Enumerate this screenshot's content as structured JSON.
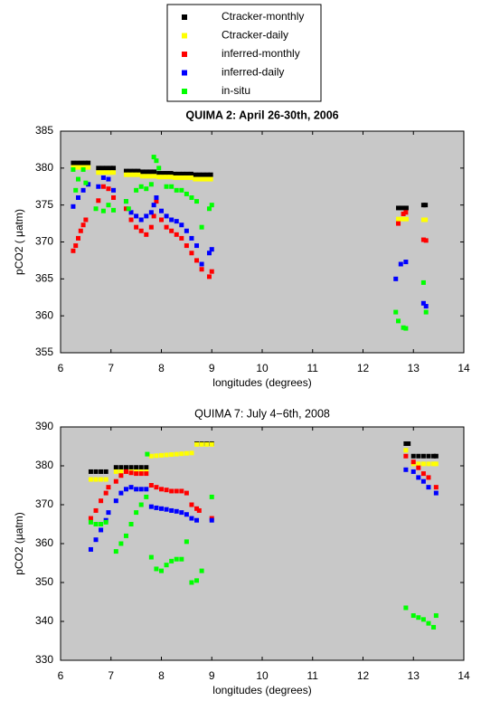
{
  "chart_data": [
    {
      "type": "scatter",
      "title": "QUIMA 2: April 26-30th, 2006",
      "x_label": "longitudes (degrees)",
      "y_label": "pCO2 ( μatm)",
      "xlim": [
        6,
        14
      ],
      "xticks": [
        6,
        7,
        8,
        9,
        10,
        11,
        12,
        13,
        14
      ],
      "ylim": [
        355,
        385
      ],
      "yticks": [
        355,
        360,
        365,
        370,
        375,
        380,
        385
      ],
      "series": [
        {
          "name": "Ctracker-monthly",
          "color": "#000000",
          "x": [
            6.25,
            6.33,
            6.41,
            6.49,
            6.55,
            6.75,
            6.83,
            6.91,
            6.99,
            7.05,
            7.3,
            7.38,
            7.46,
            7.54,
            7.62,
            7.7,
            7.78,
            7.86,
            7.95,
            8.03,
            8.11,
            8.19,
            8.27,
            8.35,
            8.43,
            8.51,
            8.59,
            8.67,
            8.75,
            8.83,
            8.91,
            8.98,
            12.7,
            12.78,
            12.86,
            13.2,
            13.24
          ],
          "values": [
            380.7,
            380.7,
            380.7,
            380.7,
            380.7,
            380.0,
            380.0,
            380.0,
            380.0,
            380.0,
            379.6,
            379.6,
            379.6,
            379.6,
            379.5,
            379.5,
            379.5,
            379.5,
            379.3,
            379.3,
            379.3,
            379.3,
            379.2,
            379.2,
            379.2,
            379.2,
            379.2,
            379.1,
            379.1,
            379.1,
            379.1,
            379.1,
            374.6,
            374.6,
            374.6,
            375.0,
            375.0
          ]
        },
        {
          "name": "Ctracker-daily",
          "color": "#ffff00",
          "x": [
            6.25,
            6.33,
            6.41,
            6.49,
            6.55,
            6.75,
            6.83,
            6.91,
            6.99,
            7.05,
            7.3,
            7.38,
            7.46,
            7.54,
            7.62,
            7.7,
            7.78,
            7.86,
            7.95,
            8.03,
            8.11,
            8.19,
            8.27,
            8.35,
            8.43,
            8.51,
            8.59,
            8.67,
            8.75,
            8.83,
            8.91,
            8.98,
            12.7,
            12.78,
            12.86,
            13.2,
            13.24
          ],
          "values": [
            380.1,
            380.1,
            380.1,
            380.1,
            380.1,
            379.4,
            379.4,
            379.4,
            379.4,
            379.4,
            379.1,
            379.1,
            379.1,
            379.1,
            378.9,
            378.9,
            378.9,
            378.9,
            378.8,
            378.8,
            378.8,
            378.8,
            378.7,
            378.7,
            378.7,
            378.7,
            378.7,
            378.5,
            378.5,
            378.5,
            378.5,
            378.5,
            373.1,
            373.1,
            373.1,
            373.0,
            373.0
          ]
        },
        {
          "name": "inferred-monthly",
          "color": "#ff0000",
          "x": [
            6.25,
            6.3,
            6.35,
            6.4,
            6.45,
            6.5,
            6.75,
            6.85,
            6.95,
            7.05,
            7.3,
            7.4,
            7.5,
            7.6,
            7.7,
            7.8,
            7.85,
            7.9,
            8.0,
            8.1,
            8.2,
            8.3,
            8.4,
            8.5,
            8.6,
            8.7,
            8.8,
            8.95,
            9.0,
            12.7,
            12.8,
            12.85,
            13.2,
            13.25
          ],
          "values": [
            368.8,
            369.5,
            370.5,
            371.5,
            372.3,
            373.0,
            375.6,
            377.5,
            377.2,
            376.0,
            374.5,
            373.0,
            372.0,
            371.5,
            371.0,
            372.0,
            373.5,
            375.5,
            373.0,
            372.0,
            371.5,
            371.0,
            370.5,
            369.5,
            368.5,
            367.5,
            366.3,
            365.3,
            366.0,
            372.5,
            373.8,
            374.0,
            370.3,
            370.2
          ]
        },
        {
          "name": "inferred-daily",
          "color": "#0000ff",
          "x": [
            6.25,
            6.35,
            6.45,
            6.55,
            6.75,
            6.85,
            6.95,
            7.05,
            7.3,
            7.4,
            7.5,
            7.6,
            7.7,
            7.8,
            7.85,
            7.9,
            8.0,
            8.1,
            8.2,
            8.3,
            8.4,
            8.5,
            8.6,
            8.7,
            8.8,
            8.95,
            9.0,
            12.65,
            12.75,
            12.85,
            13.2,
            13.25
          ],
          "values": [
            374.8,
            376.0,
            377.0,
            377.8,
            377.5,
            378.7,
            378.5,
            377.0,
            375.5,
            374.0,
            373.5,
            373.0,
            373.5,
            374.0,
            375.0,
            376.0,
            374.2,
            373.5,
            373.0,
            372.8,
            372.3,
            371.5,
            370.5,
            369.5,
            367.0,
            368.5,
            369.0,
            365.0,
            367.0,
            367.3,
            361.7,
            361.3
          ]
        },
        {
          "name": "in-situ",
          "color": "#00ff00",
          "x": [
            6.25,
            6.3,
            6.35,
            6.45,
            6.5,
            6.7,
            6.85,
            6.95,
            7.05,
            7.3,
            7.35,
            7.5,
            7.6,
            7.7,
            7.8,
            7.85,
            7.9,
            7.95,
            8.1,
            8.2,
            8.3,
            8.4,
            8.5,
            8.6,
            8.7,
            8.8,
            8.95,
            9.0,
            12.65,
            12.7,
            12.8,
            12.85,
            13.2,
            13.25
          ],
          "values": [
            379.8,
            377.0,
            378.5,
            379.8,
            378.0,
            374.5,
            374.2,
            375.0,
            374.3,
            375.5,
            374.5,
            377.0,
            377.5,
            377.2,
            377.8,
            381.5,
            381.0,
            380.0,
            377.5,
            377.5,
            377.0,
            377.0,
            376.5,
            376.0,
            375.5,
            372.0,
            374.5,
            375.0,
            360.5,
            359.3,
            358.4,
            358.3,
            364.5,
            360.5
          ]
        }
      ]
    },
    {
      "type": "scatter",
      "title": "QUIMA 7: July 4−6th, 2008",
      "x_label": "longitudes (degrees)",
      "y_label": "pCO2 (μatm)",
      "xlim": [
        6,
        14
      ],
      "xticks": [
        6,
        7,
        8,
        9,
        10,
        11,
        12,
        13,
        14
      ],
      "ylim": [
        330,
        390
      ],
      "yticks": [
        330,
        340,
        350,
        360,
        370,
        380,
        390
      ],
      "series": [
        {
          "x": [
            6.6,
            6.7,
            6.8,
            6.9,
            7.1,
            7.2,
            7.3,
            7.4,
            7.5,
            7.6,
            7.7,
            8.7,
            8.8,
            8.9,
            9.0,
            12.85,
            12.9,
            13.0,
            13.1,
            13.2,
            13.3,
            13.4,
            13.45
          ],
          "values": [
            378.5,
            378.5,
            378.5,
            378.5,
            379.6,
            379.6,
            379.6,
            379.6,
            379.6,
            379.6,
            379.6,
            385.7,
            385.7,
            385.7,
            385.7,
            385.7,
            385.7,
            382.5,
            382.5,
            382.5,
            382.5,
            382.5,
            382.5
          ]
        },
        {
          "x": [
            6.6,
            6.7,
            6.8,
            6.9,
            7.1,
            7.2,
            7.3,
            7.4,
            7.5,
            7.6,
            7.7,
            7.8,
            7.9,
            8.0,
            8.1,
            8.2,
            8.3,
            8.4,
            8.5,
            8.6,
            8.7,
            8.8,
            8.9,
            9.0,
            12.85,
            13.0,
            13.1,
            13.2,
            13.3,
            13.4,
            13.45
          ],
          "values": [
            376.5,
            376.5,
            376.5,
            376.5,
            378.5,
            378.5,
            378.5,
            378.5,
            378.5,
            378.5,
            378.5,
            382.5,
            382.6,
            382.7,
            382.8,
            382.9,
            383.0,
            383.1,
            383.2,
            383.3,
            385.5,
            385.5,
            385.5,
            385.5,
            384.0,
            380.5,
            380.5,
            380.5,
            380.5,
            380.5,
            380.5
          ]
        },
        {
          "x": [
            6.6,
            6.7,
            6.8,
            6.9,
            6.95,
            7.1,
            7.2,
            7.3,
            7.4,
            7.5,
            7.6,
            7.7,
            7.8,
            7.9,
            8.0,
            8.1,
            8.2,
            8.3,
            8.4,
            8.5,
            8.6,
            8.7,
            8.75,
            9.0,
            12.85,
            13.0,
            13.1,
            13.2,
            13.3,
            13.45
          ],
          "values": [
            366.5,
            368.5,
            371.0,
            373.0,
            374.5,
            376.0,
            377.5,
            378.5,
            378.2,
            378.0,
            378.0,
            378.0,
            375.0,
            374.5,
            374.0,
            373.8,
            373.5,
            373.5,
            373.5,
            373.0,
            370.0,
            369.0,
            368.5,
            366.5,
            382.5,
            381.0,
            379.5,
            378.0,
            377.0,
            374.5
          ]
        },
        {
          "x": [
            6.6,
            6.7,
            6.8,
            6.9,
            6.95,
            7.1,
            7.2,
            7.3,
            7.4,
            7.5,
            7.6,
            7.7,
            7.8,
            7.9,
            8.0,
            8.1,
            8.2,
            8.3,
            8.4,
            8.5,
            8.6,
            8.7,
            9.0,
            12.85,
            13.0,
            13.1,
            13.2,
            13.3,
            13.45
          ],
          "values": [
            358.5,
            361.0,
            363.5,
            366.0,
            368.0,
            371.0,
            373.0,
            374.0,
            374.5,
            374.0,
            374.0,
            374.0,
            369.5,
            369.2,
            369.0,
            368.8,
            368.5,
            368.3,
            368.0,
            367.5,
            366.5,
            366.0,
            366.0,
            379.0,
            378.5,
            377.0,
            376.0,
            374.5,
            373.0
          ]
        },
        {
          "x": [
            6.6,
            6.7,
            6.8,
            6.9,
            7.1,
            7.2,
            7.3,
            7.4,
            7.5,
            7.6,
            7.7,
            7.72,
            7.8,
            7.9,
            8.0,
            8.1,
            8.2,
            8.3,
            8.4,
            8.5,
            8.6,
            8.7,
            8.8,
            9.0,
            12.85,
            13.0,
            13.1,
            13.2,
            13.3,
            13.4,
            13.45
          ],
          "values": [
            365.5,
            365.0,
            365.0,
            365.5,
            358.0,
            360.0,
            362.0,
            365.0,
            368.0,
            370.0,
            372.0,
            383.0,
            356.5,
            353.5,
            353.0,
            354.5,
            355.5,
            356.0,
            356.0,
            360.5,
            350.0,
            350.5,
            353.0,
            372.0,
            343.5,
            341.5,
            341.0,
            340.5,
            339.5,
            338.5,
            341.5
          ]
        }
      ]
    }
  ]
}
